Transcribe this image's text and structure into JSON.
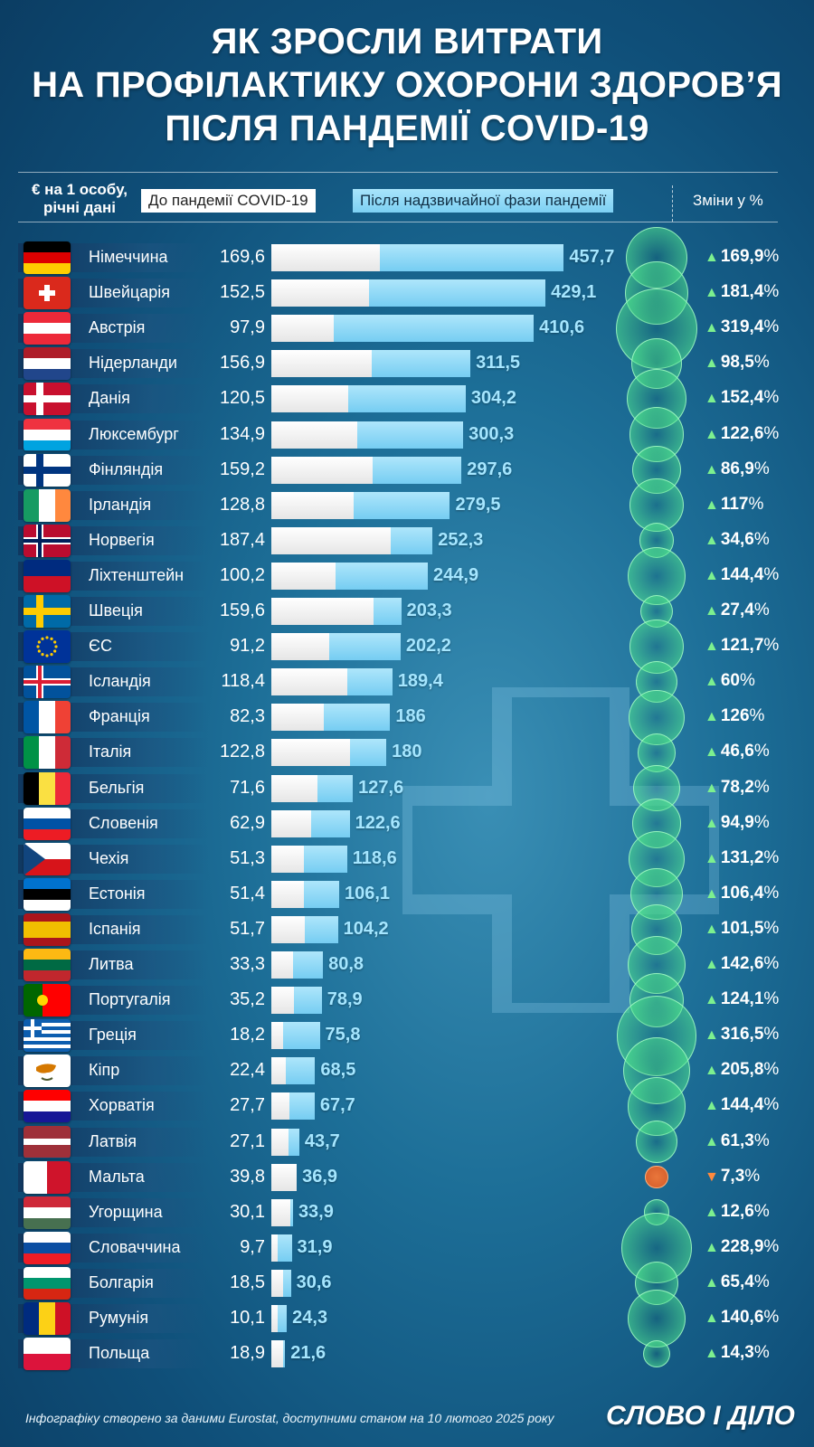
{
  "title_lines": [
    "ЯК ЗРОСЛИ ВИТРАТИ",
    "НА ПРОФІЛАКТИКУ ОХОРОНИ ЗДОРОВ’Я",
    "ПІСЛЯ ПАНДЕМІЇ COVID-19"
  ],
  "unit_label": "€ на 1 особу, річні дані",
  "legend_before": "До пандемії COVID-19",
  "legend_after": "Після надзвичайної фази пандемії",
  "changes_header": "Зміни у %",
  "source": "Інфографіку створено за даними Eurostat, доступними станом на 10 лютого 2025 року",
  "logo": "СЛОВО І ДІЛО",
  "chart_data": {
    "type": "bar",
    "series": [
      {
        "name": "До пандемії COVID-19",
        "color": "#ffffff"
      },
      {
        "name": "Після надзвичайної фази пандемії",
        "color": "#7dd0f3"
      }
    ],
    "rows": [
      {
        "country": "Німеччина",
        "flag": "germany",
        "before": "169,6",
        "after": "457,7",
        "change": "169,9",
        "dir": "up"
      },
      {
        "country": "Швейцарія",
        "flag": "switzerland",
        "before": "152,5",
        "after": "429,1",
        "change": "181,4",
        "dir": "up"
      },
      {
        "country": "Австрія",
        "flag": "austria",
        "before": "97,9",
        "after": "410,6",
        "change": "319,4",
        "dir": "up"
      },
      {
        "country": "Нідерланди",
        "flag": "netherlands",
        "before": "156,9",
        "after": "311,5",
        "change": "98,5",
        "dir": "up"
      },
      {
        "country": "Данія",
        "flag": "denmark",
        "before": "120,5",
        "after": "304,2",
        "change": "152,4",
        "dir": "up"
      },
      {
        "country": "Люксембург",
        "flag": "luxembourg",
        "before": "134,9",
        "after": "300,3",
        "change": "122,6",
        "dir": "up"
      },
      {
        "country": "Фінляндія",
        "flag": "finland",
        "before": "159,2",
        "after": "297,6",
        "change": "86,9",
        "dir": "up"
      },
      {
        "country": "Ірландія",
        "flag": "ireland",
        "before": "128,8",
        "after": "279,5",
        "change": "117",
        "dir": "up"
      },
      {
        "country": "Норвегія",
        "flag": "norway",
        "before": "187,4",
        "after": "252,3",
        "change": "34,6",
        "dir": "up"
      },
      {
        "country": "Ліхтенштейн",
        "flag": "liechtenstein",
        "before": "100,2",
        "after": "244,9",
        "change": "144,4",
        "dir": "up"
      },
      {
        "country": "Швеція",
        "flag": "sweden",
        "before": "159,6",
        "after": "203,3",
        "change": "27,4",
        "dir": "up"
      },
      {
        "country": "ЄС",
        "flag": "eu",
        "before": "91,2",
        "after": "202,2",
        "change": "121,7",
        "dir": "up"
      },
      {
        "country": "Ісландія",
        "flag": "iceland",
        "before": "118,4",
        "after": "189,4",
        "change": "60",
        "dir": "up"
      },
      {
        "country": "Франція",
        "flag": "france",
        "before": "82,3",
        "after": "186",
        "change": "126",
        "dir": "up"
      },
      {
        "country": "Італія",
        "flag": "italy",
        "before": "122,8",
        "after": "180",
        "change": "46,6",
        "dir": "up"
      },
      {
        "country": "Бельгія",
        "flag": "belgium",
        "before": "71,6",
        "after": "127,6",
        "change": "78,2",
        "dir": "up"
      },
      {
        "country": "Словенія",
        "flag": "slovenia",
        "before": "62,9",
        "after": "122,6",
        "change": "94,9",
        "dir": "up"
      },
      {
        "country": "Чехія",
        "flag": "czechia",
        "before": "51,3",
        "after": "118,6",
        "change": "131,2",
        "dir": "up"
      },
      {
        "country": "Естонія",
        "flag": "estonia",
        "before": "51,4",
        "after": "106,1",
        "change": "106,4",
        "dir": "up"
      },
      {
        "country": "Іспанія",
        "flag": "spain",
        "before": "51,7",
        "after": "104,2",
        "change": "101,5",
        "dir": "up"
      },
      {
        "country": "Литва",
        "flag": "lithuania",
        "before": "33,3",
        "after": "80,8",
        "change": "142,6",
        "dir": "up"
      },
      {
        "country": "Португалія",
        "flag": "portugal",
        "before": "35,2",
        "after": "78,9",
        "change": "124,1",
        "dir": "up"
      },
      {
        "country": "Греція",
        "flag": "greece",
        "before": "18,2",
        "after": "75,8",
        "change": "316,5",
        "dir": "up"
      },
      {
        "country": "Кіпр",
        "flag": "cyprus",
        "before": "22,4",
        "after": "68,5",
        "change": "205,8",
        "dir": "up"
      },
      {
        "country": "Хорватія",
        "flag": "croatia",
        "before": "27,7",
        "after": "67,7",
        "change": "144,4",
        "dir": "up"
      },
      {
        "country": "Латвія",
        "flag": "latvia",
        "before": "27,1",
        "after": "43,7",
        "change": "61,3",
        "dir": "up"
      },
      {
        "country": "Мальта",
        "flag": "malta",
        "before": "39,8",
        "after": "36,9",
        "change": "7,3",
        "dir": "down"
      },
      {
        "country": "Угорщина",
        "flag": "hungary",
        "before": "30,1",
        "after": "33,9",
        "change": "12,6",
        "dir": "up"
      },
      {
        "country": "Словаччина",
        "flag": "slovakia",
        "before": "9,7",
        "after": "31,9",
        "change": "228,9",
        "dir": "up"
      },
      {
        "country": "Болгарія",
        "flag": "bulgaria",
        "before": "18,5",
        "after": "30,6",
        "change": "65,4",
        "dir": "up"
      },
      {
        "country": "Румунія",
        "flag": "romania",
        "before": "10,1",
        "after": "24,3",
        "change": "140,6",
        "dir": "up"
      },
      {
        "country": "Польща",
        "flag": "poland",
        "before": "18,9",
        "after": "21,6",
        "change": "14,3",
        "dir": "up"
      }
    ]
  },
  "colors": {
    "before_bar": "#ffffff",
    "after_bar": "#7dd0f3",
    "after_value": "#a5e6ff",
    "up_arrow": "#7cf08f",
    "down_arrow": "#ff8a3d",
    "bubble": "#7cf0a0"
  }
}
